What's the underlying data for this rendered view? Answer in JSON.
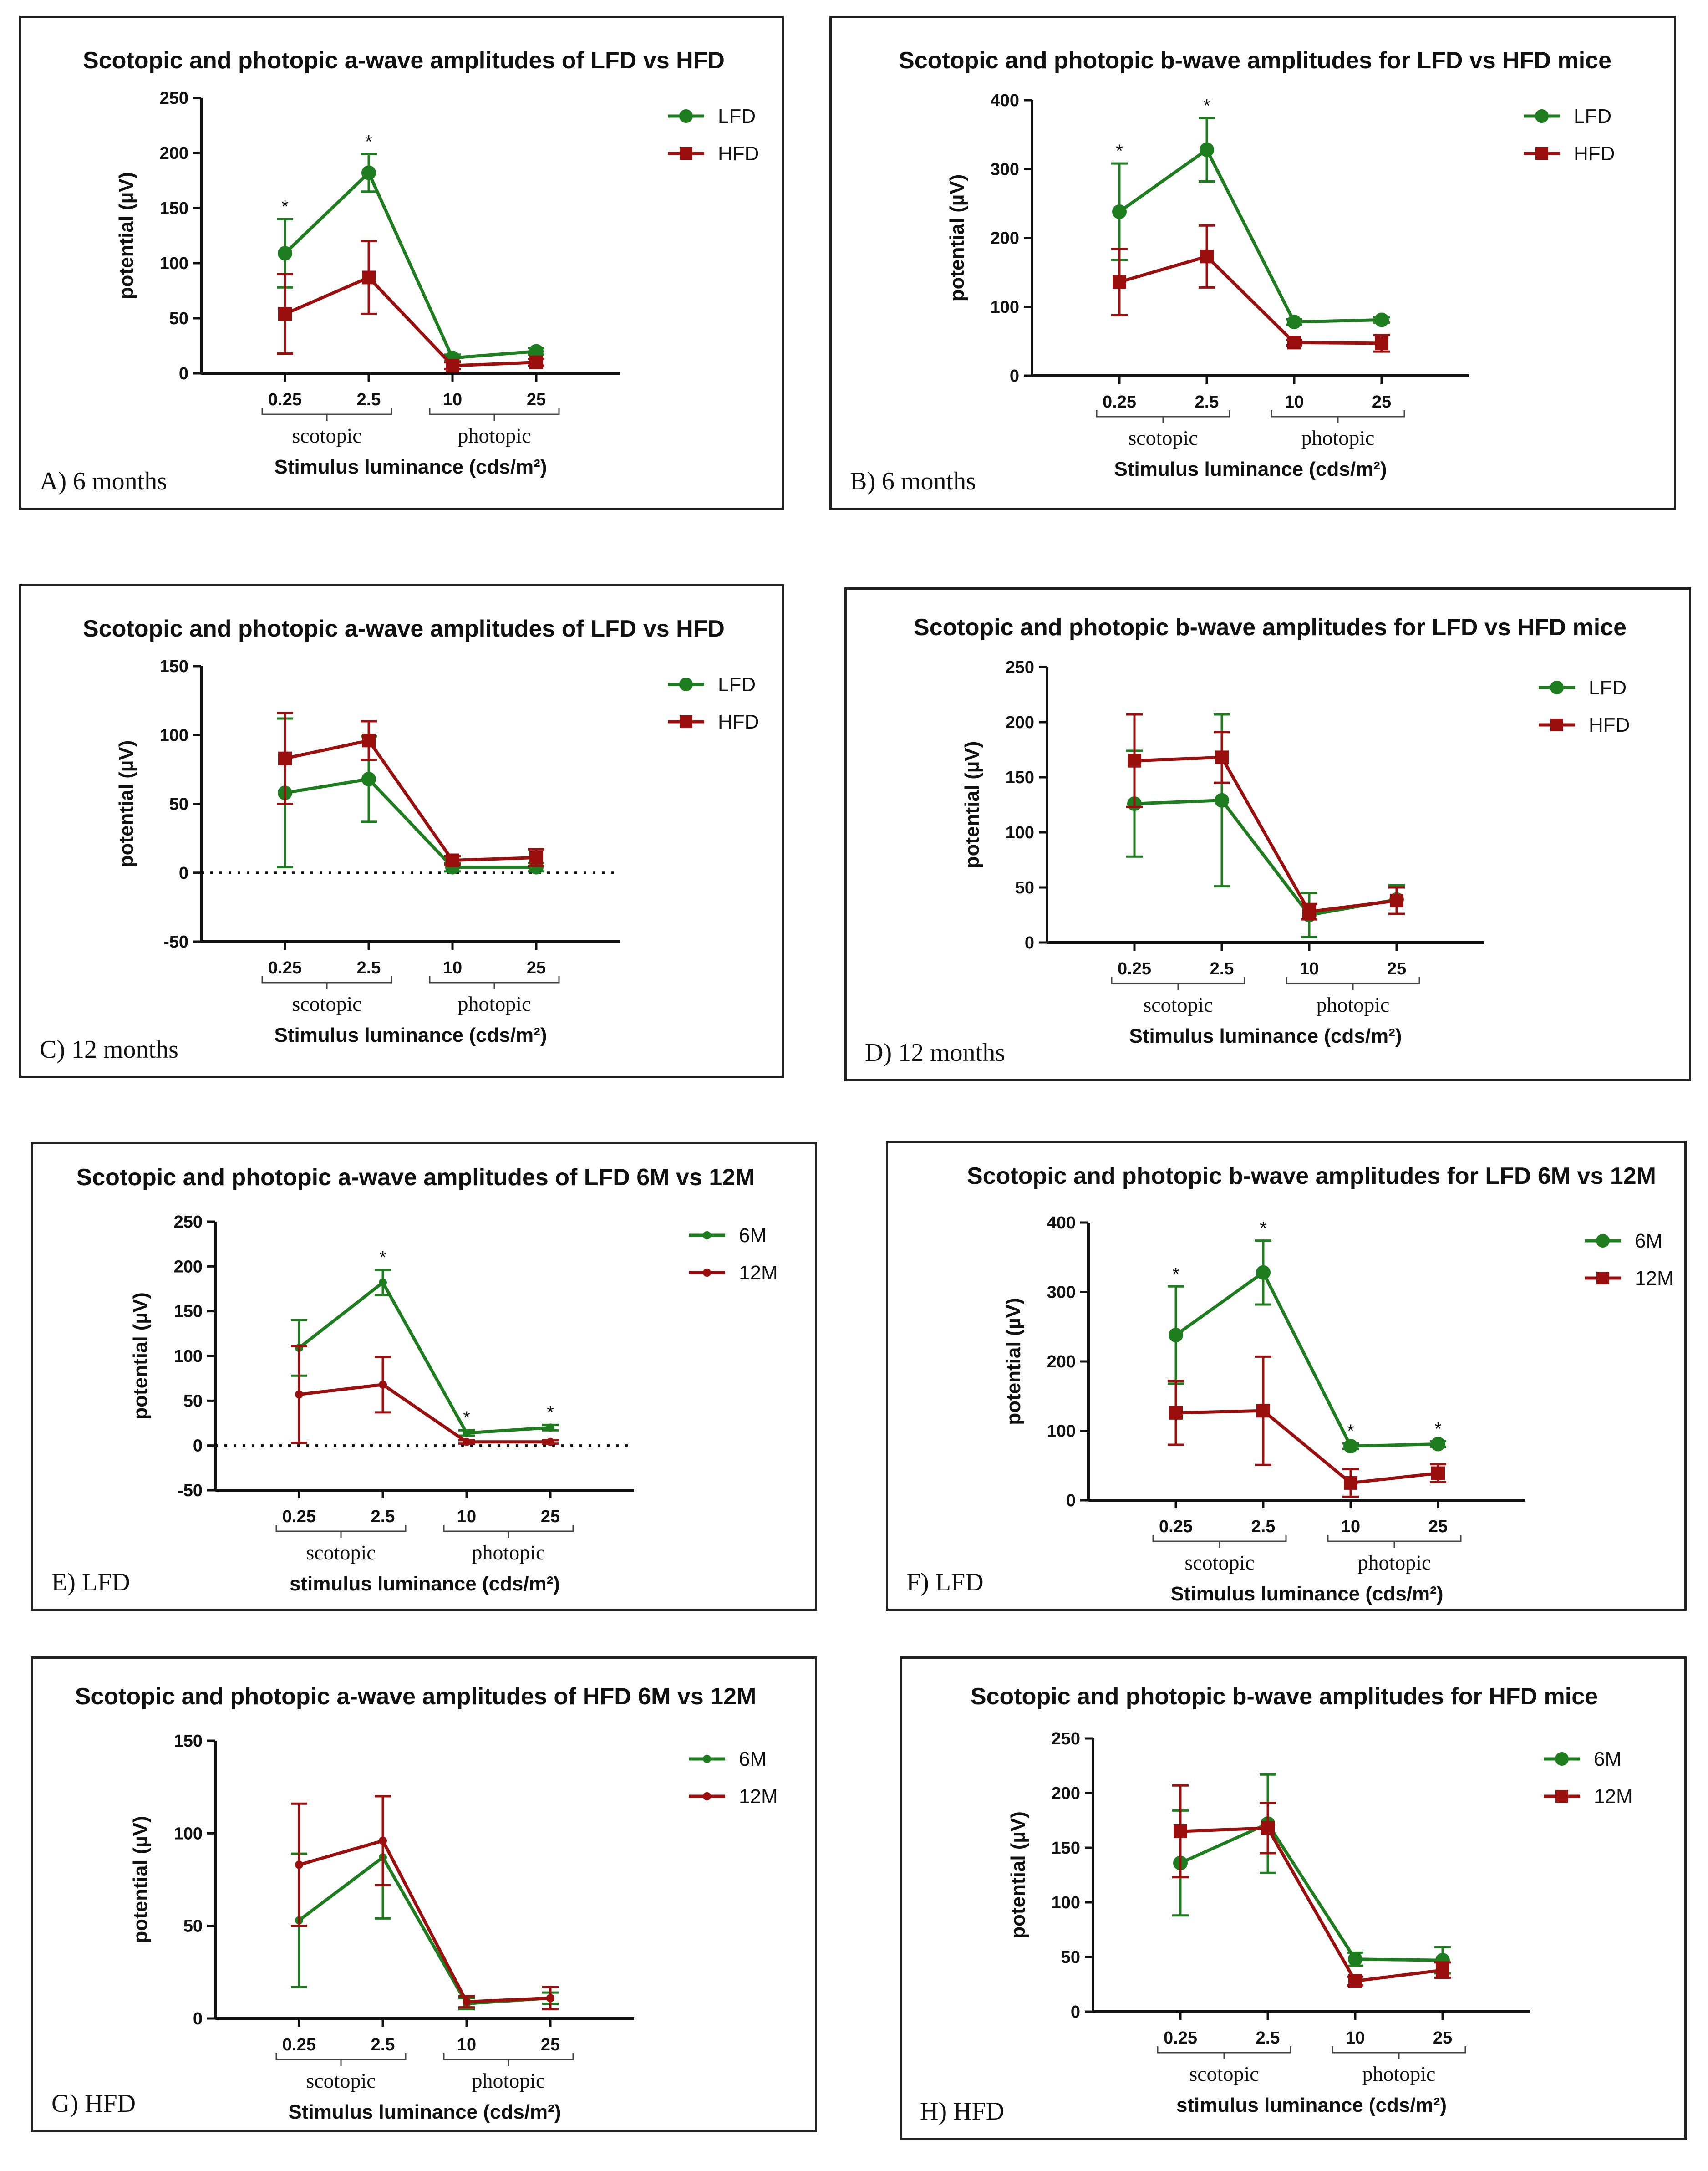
{
  "colors": {
    "LFD": "#1e7d1e",
    "HFD": "#9b0f0f",
    "axis": "#111111"
  },
  "charts": [
    {
      "id": "A",
      "type": "line",
      "title": "Scotopic and photopic a-wave amplitudes of LFD vs HFD",
      "ylabel": "potential (µV)",
      "xlabel": "Stimulus luminance (cds/m²)",
      "panel_label": "A) 6 months",
      "categories": [
        "0.25",
        "2.5",
        "10",
        "25"
      ],
      "groups": [
        "scotopic",
        "photopic"
      ],
      "ylim": [
        0,
        250
      ],
      "yticks": [
        0,
        50,
        100,
        150,
        200,
        250
      ],
      "zero_line": false,
      "series": [
        {
          "name": "LFD",
          "marker": "circle",
          "color": "#1e7d1e",
          "values": [
            109,
            182,
            14,
            20
          ],
          "errors": [
            31,
            17,
            3,
            3
          ],
          "stars": [
            true,
            true,
            false,
            false
          ]
        },
        {
          "name": "HFD",
          "marker": "square",
          "color": "#9b0f0f",
          "values": [
            54,
            87,
            7,
            10
          ],
          "errors": [
            36,
            33,
            3,
            3
          ],
          "stars": [
            false,
            false,
            false,
            false
          ]
        }
      ]
    },
    {
      "id": "B",
      "type": "line",
      "title": "Scotopic and photopic b-wave amplitudes for LFD vs HFD mice",
      "ylabel": "potential (µV)",
      "xlabel": "Stimulus luminance (cds/m²)",
      "panel_label": "B) 6 months",
      "categories": [
        "0.25",
        "2.5",
        "10",
        "25"
      ],
      "groups": [
        "scotopic",
        "photopic"
      ],
      "ylim": [
        0,
        400
      ],
      "yticks": [
        0,
        100,
        200,
        300,
        400
      ],
      "zero_line": false,
      "series": [
        {
          "name": "LFD",
          "marker": "circle",
          "color": "#1e7d1e",
          "values": [
            238,
            328,
            78,
            81
          ],
          "errors": [
            70,
            46,
            4,
            4
          ],
          "stars": [
            true,
            true,
            false,
            false
          ]
        },
        {
          "name": "HFD",
          "marker": "square",
          "color": "#9b0f0f",
          "values": [
            136,
            173,
            48,
            47
          ],
          "errors": [
            48,
            45,
            4,
            12
          ],
          "stars": [
            false,
            false,
            false,
            false
          ]
        }
      ]
    },
    {
      "id": "C",
      "type": "line",
      "title": "Scotopic and photopic a-wave amplitudes of LFD vs HFD",
      "ylabel": "potential (µV)",
      "xlabel": "Stimulus luminance (cds/m²)",
      "panel_label": "C) 12 months",
      "categories": [
        "0.25",
        "2.5",
        "10",
        "25"
      ],
      "groups": [
        "scotopic",
        "photopic"
      ],
      "ylim": [
        -50,
        150
      ],
      "yticks": [
        -50,
        0,
        50,
        100,
        150
      ],
      "zero_line": true,
      "series": [
        {
          "name": "LFD",
          "marker": "circle",
          "color": "#1e7d1e",
          "values": [
            58,
            68,
            4,
            4
          ],
          "errors": [
            54,
            31,
            3,
            3
          ],
          "stars": [
            false,
            false,
            false,
            false
          ]
        },
        {
          "name": "HFD",
          "marker": "square",
          "color": "#9b0f0f",
          "values": [
            83,
            96,
            9,
            11
          ],
          "errors": [
            33,
            14,
            3,
            6
          ],
          "stars": [
            false,
            false,
            false,
            false
          ]
        }
      ]
    },
    {
      "id": "D",
      "type": "line",
      "title": "Scotopic and photopic b-wave amplitudes for LFD vs HFD mice",
      "ylabel": "potential (µV)",
      "xlabel": "Stimulus luminance (cds/m²)",
      "panel_label": "D) 12 months",
      "categories": [
        "0.25",
        "2.5",
        "10",
        "25"
      ],
      "groups": [
        "scotopic",
        "photopic"
      ],
      "ylim": [
        0,
        250
      ],
      "yticks": [
        0,
        50,
        100,
        150,
        200,
        250
      ],
      "zero_line": false,
      "series": [
        {
          "name": "LFD",
          "marker": "circle",
          "color": "#1e7d1e",
          "values": [
            126,
            129,
            25,
            39
          ],
          "errors": [
            48,
            78,
            20,
            13
          ],
          "stars": [
            false,
            false,
            false,
            false
          ]
        },
        {
          "name": "HFD",
          "marker": "square",
          "color": "#9b0f0f",
          "values": [
            165,
            168,
            28,
            38
          ],
          "errors": [
            42,
            23,
            7,
            12
          ],
          "stars": [
            false,
            false,
            false,
            false
          ]
        }
      ]
    },
    {
      "id": "E",
      "type": "line",
      "title": "Scotopic and photopic a-wave amplitudes of LFD 6M vs 12M",
      "ylabel": "potential (µV)",
      "xlabel": "stimulus luminance (cds/m²)",
      "panel_label": "E) LFD",
      "categories": [
        "0.25",
        "2.5",
        "10",
        "25"
      ],
      "groups": [
        "scotopic",
        "photopic"
      ],
      "ylim": [
        -50,
        250
      ],
      "yticks": [
        -50,
        0,
        50,
        100,
        150,
        200,
        250
      ],
      "zero_line": true,
      "series": [
        {
          "name": "6M",
          "marker": "small",
          "color": "#1e7d1e",
          "values": [
            109,
            182,
            14,
            20
          ],
          "errors": [
            31,
            14,
            3,
            3
          ],
          "stars": [
            false,
            true,
            true,
            true
          ]
        },
        {
          "name": "12M",
          "marker": "small",
          "color": "#9b0f0f",
          "values": [
            57,
            68,
            4,
            4
          ],
          "errors": [
            54,
            31,
            2,
            2
          ],
          "stars": [
            false,
            false,
            false,
            false
          ]
        }
      ]
    },
    {
      "id": "F",
      "type": "line",
      "title": "Scotopic and photopic b-wave amplitudes for LFD 6M vs 12M",
      "ylabel": "potential (µV)",
      "xlabel": "Stimulus luminance (cds/m²)",
      "panel_label": "F) LFD",
      "categories": [
        "0.25",
        "2.5",
        "10",
        "25"
      ],
      "groups": [
        "scotopic",
        "photopic"
      ],
      "ylim": [
        0,
        400
      ],
      "yticks": [
        0,
        100,
        200,
        300,
        400
      ],
      "zero_line": false,
      "series": [
        {
          "name": "6M",
          "marker": "circle",
          "color": "#1e7d1e",
          "values": [
            238,
            328,
            78,
            81
          ],
          "errors": [
            70,
            46,
            4,
            4
          ],
          "stars": [
            true,
            true,
            true,
            true
          ]
        },
        {
          "name": "12M",
          "marker": "square",
          "color": "#9b0f0f",
          "values": [
            126,
            129,
            25,
            39
          ],
          "errors": [
            46,
            78,
            20,
            13
          ],
          "stars": [
            false,
            false,
            false,
            false
          ]
        }
      ]
    },
    {
      "id": "G",
      "type": "line",
      "title": "Scotopic and photopic a-wave amplitudes of HFD 6M vs 12M",
      "ylabel": "potential (µV)",
      "xlabel": "Stimulus luminance (cds/m²)",
      "panel_label": "G) HFD",
      "categories": [
        "0.25",
        "2.5",
        "10",
        "25"
      ],
      "groups": [
        "scotopic",
        "photopic"
      ],
      "ylim": [
        0,
        150
      ],
      "yticks": [
        0,
        50,
        100,
        150
      ],
      "zero_line": false,
      "series": [
        {
          "name": "6M",
          "marker": "small",
          "color": "#1e7d1e",
          "values": [
            53,
            87,
            8,
            11
          ],
          "errors": [
            36,
            33,
            3,
            3
          ],
          "stars": [
            false,
            false,
            false,
            false
          ]
        },
        {
          "name": "12M",
          "marker": "small",
          "color": "#9b0f0f",
          "values": [
            83,
            96,
            9,
            11
          ],
          "errors": [
            33,
            24,
            3,
            6
          ],
          "stars": [
            false,
            false,
            false,
            false
          ]
        }
      ]
    },
    {
      "id": "H",
      "type": "line",
      "title": "Scotopic and photopic b-wave amplitudes for HFD mice",
      "ylabel": "potential (µV)",
      "xlabel": "stimulus luminance (cds/m²)",
      "panel_label": "H) HFD",
      "categories": [
        "0.25",
        "2.5",
        "10",
        "25"
      ],
      "groups": [
        "scotopic",
        "photopic"
      ],
      "ylim": [
        0,
        250
      ],
      "yticks": [
        0,
        50,
        100,
        150,
        200,
        250
      ],
      "zero_line": false,
      "series": [
        {
          "name": "6M",
          "marker": "circle",
          "color": "#1e7d1e",
          "values": [
            136,
            172,
            48,
            47
          ],
          "errors": [
            48,
            45,
            6,
            12
          ],
          "stars": [
            false,
            false,
            false,
            false
          ]
        },
        {
          "name": "12M",
          "marker": "square",
          "color": "#9b0f0f",
          "values": [
            165,
            168,
            28,
            38
          ],
          "errors": [
            42,
            23,
            4,
            7
          ],
          "stars": [
            false,
            false,
            false,
            false
          ]
        }
      ]
    }
  ],
  "chart_data": [
    {
      "type": "line",
      "title": "Scotopic and photopic a-wave amplitudes of LFD vs HFD",
      "subtitle": "A) 6 months",
      "categories": [
        "0.25",
        "2.5",
        "10",
        "25"
      ],
      "xlabel": "Stimulus luminance (cds/m²)",
      "ylabel": "potential (µV)",
      "ylim": [
        0,
        250
      ],
      "series": [
        {
          "name": "LFD",
          "values": [
            109,
            182,
            14,
            20
          ]
        },
        {
          "name": "HFD",
          "values": [
            54,
            87,
            7,
            10
          ]
        }
      ]
    },
    {
      "type": "line",
      "title": "Scotopic and photopic b-wave amplitudes for LFD vs HFD mice",
      "subtitle": "B) 6 months",
      "categories": [
        "0.25",
        "2.5",
        "10",
        "25"
      ],
      "xlabel": "Stimulus luminance (cds/m²)",
      "ylabel": "potential (µV)",
      "ylim": [
        0,
        400
      ],
      "series": [
        {
          "name": "LFD",
          "values": [
            238,
            328,
            78,
            81
          ]
        },
        {
          "name": "HFD",
          "values": [
            136,
            173,
            48,
            47
          ]
        }
      ]
    },
    {
      "type": "line",
      "title": "Scotopic and photopic a-wave amplitudes of LFD vs HFD",
      "subtitle": "C) 12 months",
      "categories": [
        "0.25",
        "2.5",
        "10",
        "25"
      ],
      "xlabel": "Stimulus luminance (cds/m²)",
      "ylabel": "potential (µV)",
      "ylim": [
        -50,
        150
      ],
      "series": [
        {
          "name": "LFD",
          "values": [
            58,
            68,
            4,
            4
          ]
        },
        {
          "name": "HFD",
          "values": [
            83,
            96,
            9,
            11
          ]
        }
      ]
    },
    {
      "type": "line",
      "title": "Scotopic and photopic b-wave amplitudes for LFD vs HFD mice",
      "subtitle": "D) 12 months",
      "categories": [
        "0.25",
        "2.5",
        "10",
        "25"
      ],
      "xlabel": "Stimulus luminance (cds/m²)",
      "ylabel": "potential (µV)",
      "ylim": [
        0,
        250
      ],
      "series": [
        {
          "name": "LFD",
          "values": [
            126,
            129,
            25,
            39
          ]
        },
        {
          "name": "HFD",
          "values": [
            165,
            168,
            28,
            38
          ]
        }
      ]
    },
    {
      "type": "line",
      "title": "Scotopic and photopic a-wave amplitudes of LFD 6M vs 12M",
      "subtitle": "E) LFD",
      "categories": [
        "0.25",
        "2.5",
        "10",
        "25"
      ],
      "xlabel": "stimulus luminance (cds/m²)",
      "ylabel": "potential (µV)",
      "ylim": [
        -50,
        250
      ],
      "series": [
        {
          "name": "6M",
          "values": [
            109,
            182,
            14,
            20
          ]
        },
        {
          "name": "12M",
          "values": [
            57,
            68,
            4,
            4
          ]
        }
      ]
    },
    {
      "type": "line",
      "title": "Scotopic and photopic b-wave amplitudes for LFD 6M vs 12M",
      "subtitle": "F) LFD",
      "categories": [
        "0.25",
        "2.5",
        "10",
        "25"
      ],
      "xlabel": "Stimulus luminance (cds/m²)",
      "ylabel": "potential (µV)",
      "ylim": [
        0,
        400
      ],
      "series": [
        {
          "name": "6M",
          "values": [
            238,
            328,
            78,
            81
          ]
        },
        {
          "name": "12M",
          "values": [
            126,
            129,
            25,
            39
          ]
        }
      ]
    },
    {
      "type": "line",
      "title": "Scotopic and photopic a-wave amplitudes of HFD 6M vs 12M",
      "subtitle": "G) HFD",
      "categories": [
        "0.25",
        "2.5",
        "10",
        "25"
      ],
      "xlabel": "Stimulus luminance (cds/m²)",
      "ylabel": "potential (µV)",
      "ylim": [
        0,
        150
      ],
      "series": [
        {
          "name": "6M",
          "values": [
            53,
            87,
            8,
            11
          ]
        },
        {
          "name": "12M",
          "values": [
            83,
            96,
            9,
            11
          ]
        }
      ]
    },
    {
      "type": "line",
      "title": "Scotopic and photopic b-wave amplitudes for HFD mice",
      "subtitle": "H) HFD",
      "categories": [
        "0.25",
        "2.5",
        "10",
        "25"
      ],
      "xlabel": "stimulus luminance (cds/m²)",
      "ylabel": "potential (µV)",
      "ylim": [
        0,
        250
      ],
      "series": [
        {
          "name": "6M",
          "values": [
            136,
            172,
            48,
            47
          ]
        },
        {
          "name": "12M",
          "values": [
            165,
            168,
            28,
            38
          ]
        }
      ]
    }
  ]
}
